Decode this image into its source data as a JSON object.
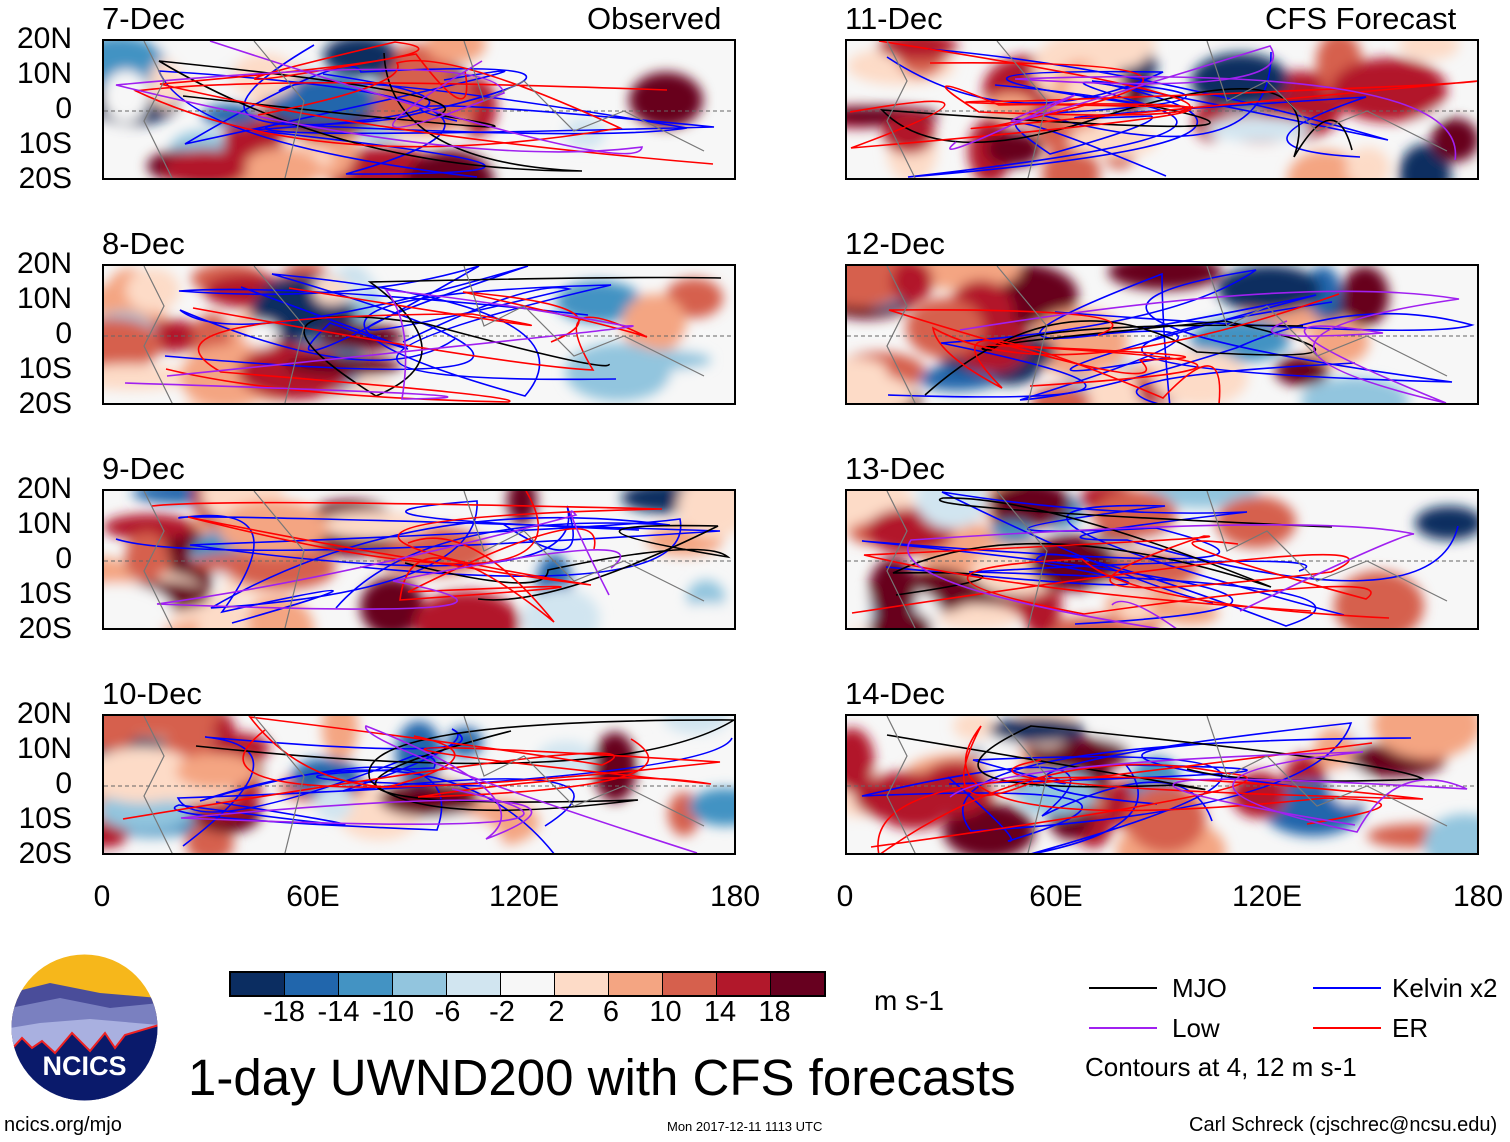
{
  "panels_left_header": "Observed",
  "panels_right_header": "CFS Forecast",
  "panels": [
    {
      "date": "7-Dec",
      "group": "observed"
    },
    {
      "date": "8-Dec",
      "group": "observed"
    },
    {
      "date": "9-Dec",
      "group": "observed"
    },
    {
      "date": "10-Dec",
      "group": "observed"
    },
    {
      "date": "11-Dec",
      "group": "forecast"
    },
    {
      "date": "12-Dec",
      "group": "forecast"
    },
    {
      "date": "13-Dec",
      "group": "forecast"
    },
    {
      "date": "14-Dec",
      "group": "forecast"
    }
  ],
  "lat_ticks": [
    "20N",
    "10N",
    "0",
    "10S",
    "20S"
  ],
  "lon_ticks": [
    "0",
    "60E",
    "120E",
    "180"
  ],
  "colorbar": {
    "labels": [
      "-18",
      "-14",
      "-10",
      "-6",
      "-2",
      "2",
      "6",
      "10",
      "14",
      "18"
    ],
    "colors": [
      "#0b2d61",
      "#2166ac",
      "#4393c3",
      "#92c5de",
      "#d1e5f0",
      "#f7f7f7",
      "#fddbc7",
      "#f4a582",
      "#d6604d",
      "#b2182b",
      "#67001f"
    ],
    "units": "m s-1"
  },
  "legend": {
    "items": [
      {
        "label": "MJO",
        "color": "#000000"
      },
      {
        "label": "Kelvin x2",
        "color": "#0000ff"
      },
      {
        "label": "Low",
        "color": "#a020f0"
      },
      {
        "label": "ER",
        "color": "#ff0000"
      }
    ],
    "note": "Contours at 4, 12 m s-1"
  },
  "title": "1-day UWND200 with CFS forecasts",
  "logo_text": "NCICS",
  "footer": {
    "url": "ncics.org/mjo",
    "timestamp": "Mon 2017-12-11 1113 UTC",
    "credit": "Carl Schreck (cjschrec@ncsu.edu)"
  }
}
